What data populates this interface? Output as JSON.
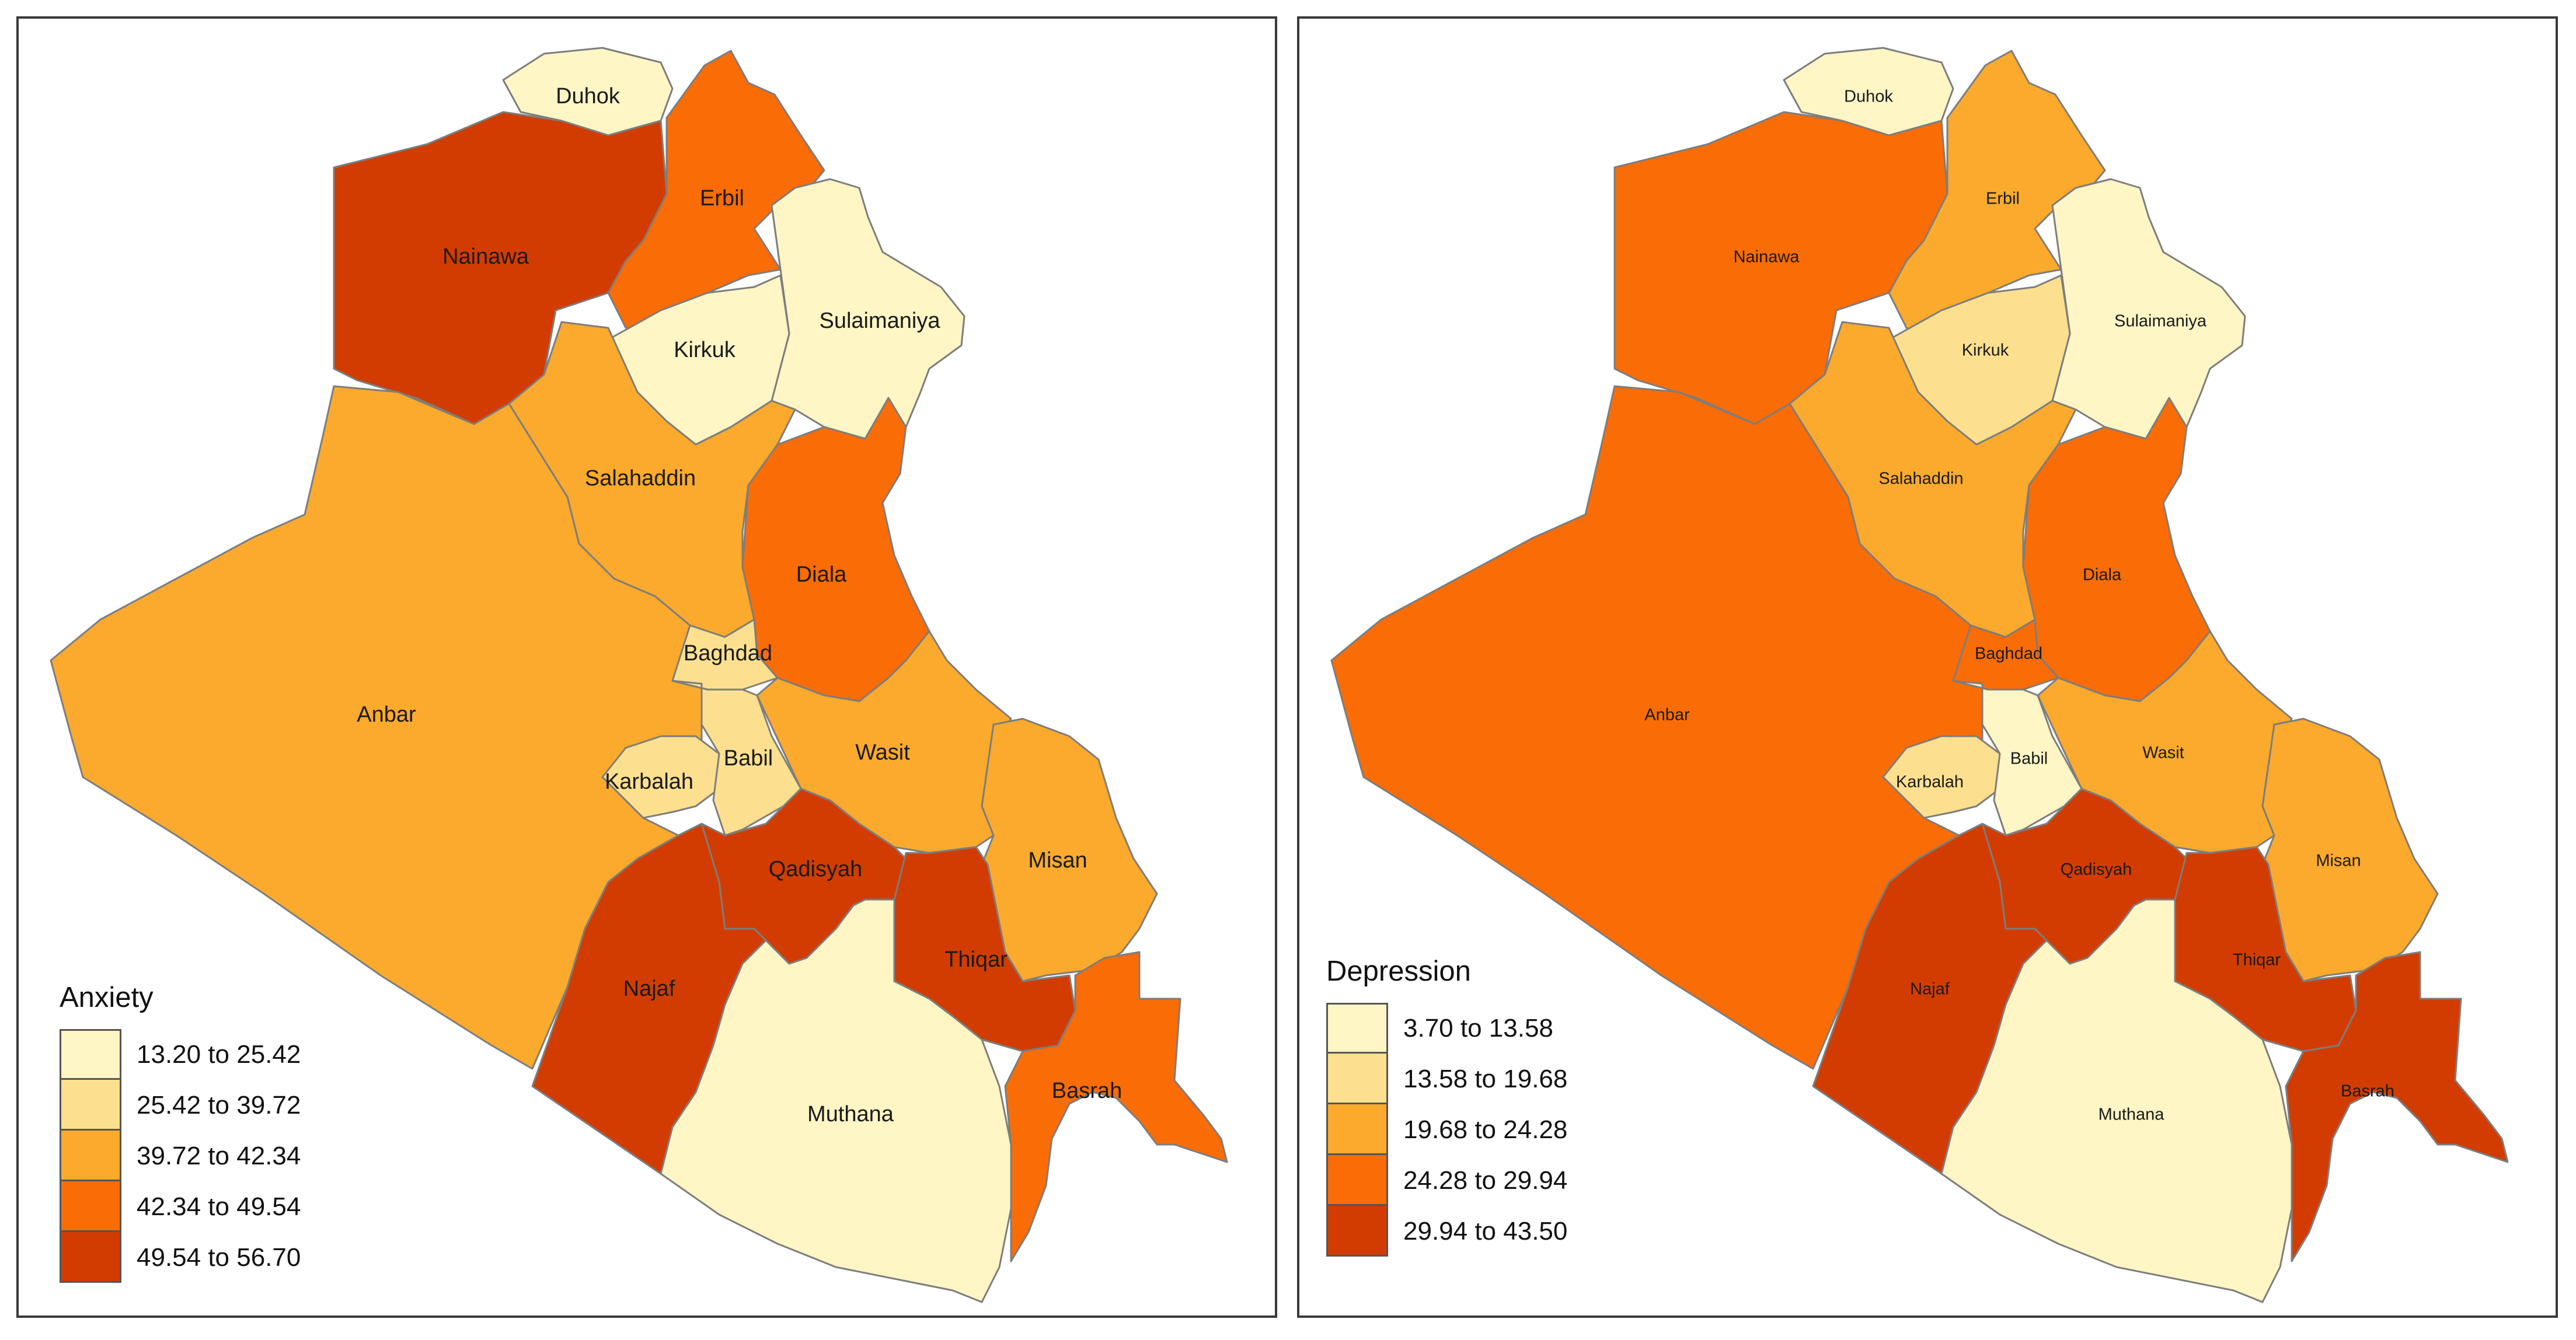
{
  "colors": {
    "class_1": "#fff5c5",
    "class_2": "#fde08f",
    "class_3": "#fbaa2d",
    "class_4": "#fa6c06",
    "class_5": "#d23c00"
  },
  "maps": [
    {
      "legend": {
        "title": "Anxiety",
        "ranges": [
          "13.20 to 25.42",
          "25.42 to 39.72",
          "39.72 to 42.34",
          "42.34 to 49.54",
          "49.54 to 56.70"
        ]
      },
      "regions": [
        {
          "name": "Duhok",
          "class": 1
        },
        {
          "name": "Erbil",
          "class": 4
        },
        {
          "name": "Nainawa",
          "class": 5
        },
        {
          "name": "Sulaimaniya",
          "class": 1
        },
        {
          "name": "Kirkuk",
          "class": 1
        },
        {
          "name": "Salahaddin",
          "class": 3
        },
        {
          "name": "Diala",
          "class": 4
        },
        {
          "name": "Anbar",
          "class": 3
        },
        {
          "name": "Baghdad",
          "class": 2
        },
        {
          "name": "Wasit",
          "class": 3
        },
        {
          "name": "Karbalah",
          "class": 2
        },
        {
          "name": "Babil",
          "class": 2
        },
        {
          "name": "Qadisyah",
          "class": 5
        },
        {
          "name": "Misan",
          "class": 3
        },
        {
          "name": "Najaf",
          "class": 5
        },
        {
          "name": "Thiqar",
          "class": 5
        },
        {
          "name": "Muthana",
          "class": 1
        },
        {
          "name": "Basrah",
          "class": 4
        }
      ]
    },
    {
      "legend": {
        "title": "Depression",
        "ranges": [
          "3.70 to 13.58",
          "13.58 to 19.68",
          "19.68 to 24.28",
          "24.28 to 29.94",
          "29.94 to 43.50"
        ]
      },
      "regions": [
        {
          "name": "Duhok",
          "class": 1
        },
        {
          "name": "Erbil",
          "class": 3
        },
        {
          "name": "Nainawa",
          "class": 4
        },
        {
          "name": "Sulaimaniya",
          "class": 1
        },
        {
          "name": "Kirkuk",
          "class": 2
        },
        {
          "name": "Salahaddin",
          "class": 3
        },
        {
          "name": "Diala",
          "class": 4
        },
        {
          "name": "Anbar",
          "class": 4
        },
        {
          "name": "Baghdad",
          "class": 4
        },
        {
          "name": "Wasit",
          "class": 3
        },
        {
          "name": "Karbalah",
          "class": 2
        },
        {
          "name": "Babil",
          "class": 1
        },
        {
          "name": "Qadisyah",
          "class": 5
        },
        {
          "name": "Misan",
          "class": 3
        },
        {
          "name": "Najaf",
          "class": 5
        },
        {
          "name": "Thiqar",
          "class": 5
        },
        {
          "name": "Muthana",
          "class": 1
        },
        {
          "name": "Basrah",
          "class": 5
        }
      ]
    }
  ]
}
